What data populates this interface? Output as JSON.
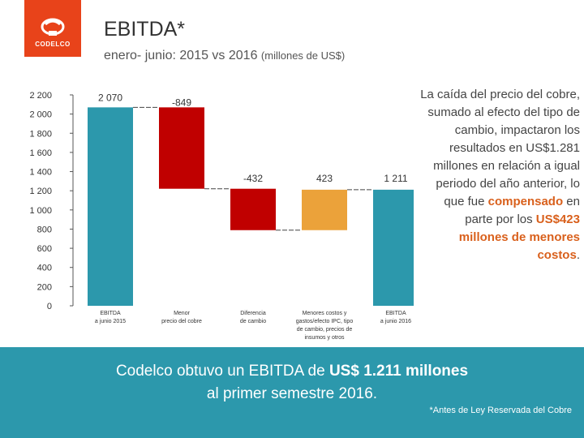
{
  "header": {
    "logo_text": "CODELCO",
    "title": "EBITDA*",
    "subtitle_main": "enero- junio: 2015 vs 2016",
    "subtitle_unit": "(millones de US$)"
  },
  "side_text": {
    "part1": "La caída del precio del cobre, sumado al efecto del tipo de cambio, impactaron los resultados en US$1.281 millones en relación a igual periodo del año anterior, lo que fue ",
    "highlight1": "compensado",
    "part2": " en parte por los ",
    "highlight2": "US$423 millones de menores costos",
    "part3": "."
  },
  "banner": {
    "line1_prefix": "Codelco obtuvo un EBITDA de ",
    "line1_bold": "US$ 1.211 millones",
    "line2": "al primer semestre 2016.",
    "footnote": "*Antes de Ley Reservada del Cobre"
  },
  "chart_data": {
    "type": "waterfall",
    "ylim": [
      0,
      2200
    ],
    "yticks": [
      {
        "v": 0,
        "label": "0"
      },
      {
        "v": 200,
        "label": "200"
      },
      {
        "v": 400,
        "label": "400"
      },
      {
        "v": 600,
        "label": "600"
      },
      {
        "v": 800,
        "label": "800"
      },
      {
        "v": 1000,
        "label": "1 000"
      },
      {
        "v": 1200,
        "label": "1 200"
      },
      {
        "v": 1400,
        "label": "1 400"
      },
      {
        "v": 1600,
        "label": "1 600"
      },
      {
        "v": 1800,
        "label": "1 800"
      },
      {
        "v": 2000,
        "label": "2 000"
      },
      {
        "v": 2200,
        "label": "2 200"
      }
    ],
    "bars": [
      {
        "category": [
          "EBITDA",
          "a junio 2015"
        ],
        "start": 0,
        "end": 2070,
        "label": "2 070",
        "color": "#2c98ac"
      },
      {
        "category": [
          "Menor",
          "precio del cobre"
        ],
        "start": 2070,
        "end": 1221,
        "label": "-849",
        "color": "#c00000"
      },
      {
        "category": [
          "Diferencia",
          "de cambio"
        ],
        "start": 1221,
        "end": 789,
        "label": "-432",
        "color": "#c00000"
      },
      {
        "category": [
          "Menores costos y",
          "gastos/efecto IPC, tipo",
          "de cambio, precios de",
          "insumos y otros"
        ],
        "start": 789,
        "end": 1211,
        "label": "423",
        "color": "#eba23a"
      },
      {
        "category": [
          "EBITDA",
          "a junio 2016"
        ],
        "start": 0,
        "end": 1211,
        "label": "1 211",
        "color": "#2c98ac"
      }
    ]
  }
}
